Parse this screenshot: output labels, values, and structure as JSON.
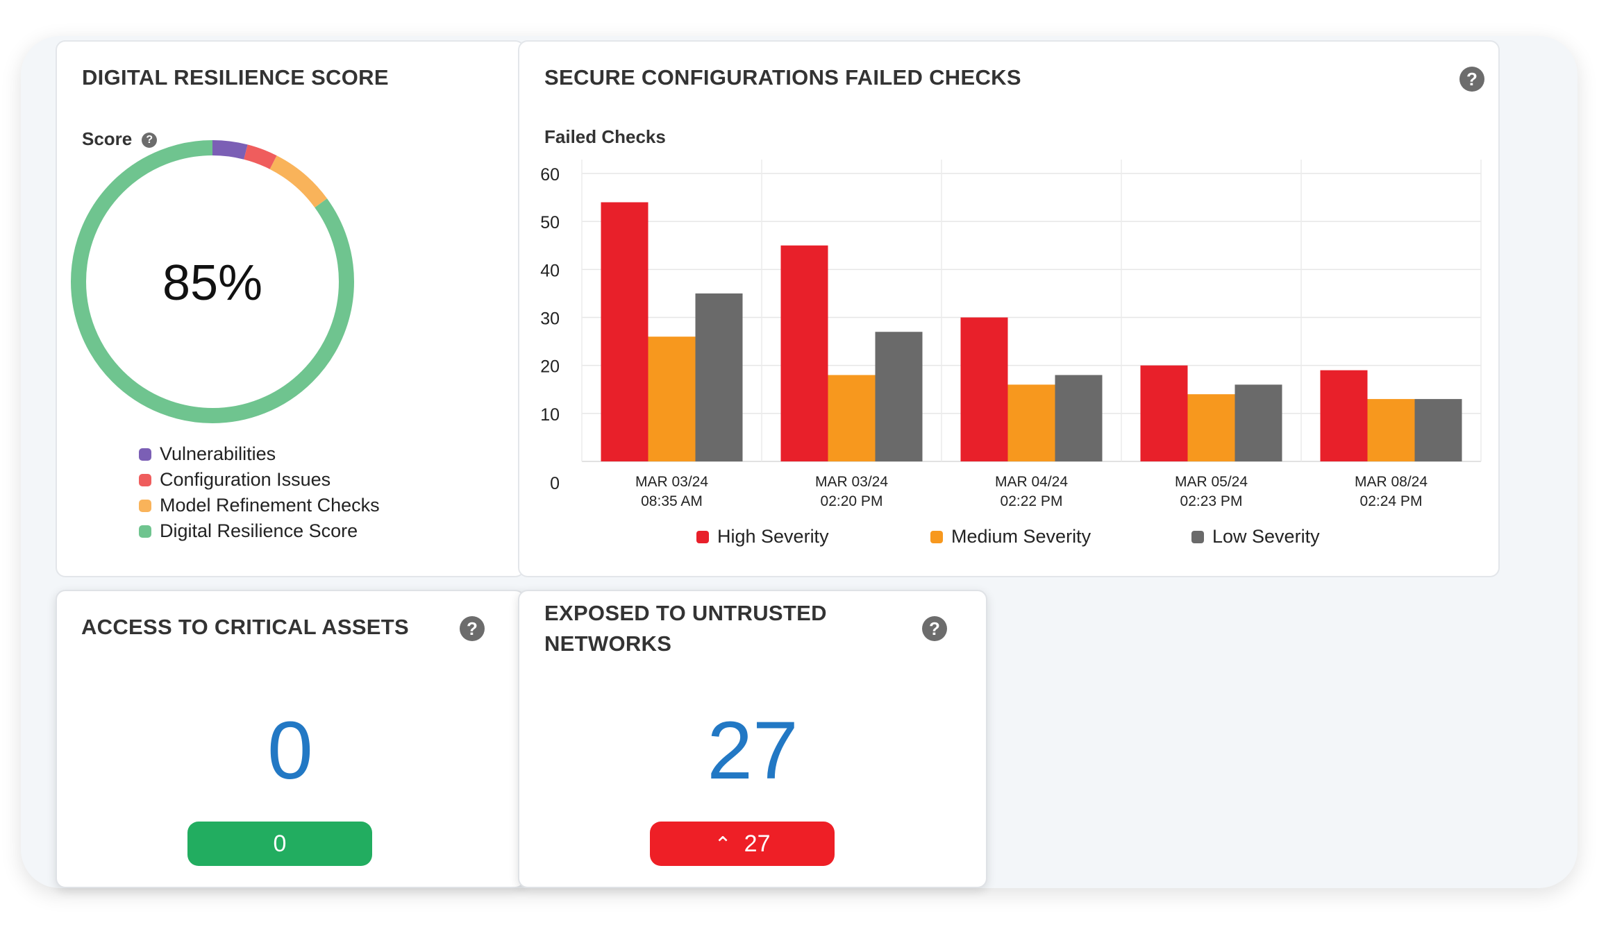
{
  "resilience": {
    "title": "DIGITAL RESILIENCE SCORE",
    "score_label": "Score",
    "help": "?",
    "score_text": "85%",
    "score_value": 85,
    "segments": [
      {
        "name": "Vulnerabilities",
        "fraction": 0.04,
        "color": "#7b5fb5"
      },
      {
        "name": "Configuration Issues",
        "fraction": 0.035,
        "color": "#ef5d5d"
      },
      {
        "name": "Model Refinement Checks",
        "fraction": 0.075,
        "color": "#f9b35a"
      },
      {
        "name": "Digital Resilience Score",
        "fraction": 0.85,
        "color": "#6fc48f"
      }
    ]
  },
  "failed_checks": {
    "title": "SECURE CONFIGURATIONS FAILED CHECKS",
    "help": "?",
    "subtitle": "Failed Checks"
  },
  "chart_data": {
    "type": "bar",
    "categories": [
      "MAR 03/24 08:35 AM",
      "MAR 03/24 02:20 PM",
      "MAR 04/24 02:22 PM",
      "MAR 05/24 02:23 PM",
      "MAR 08/24 02:24 PM"
    ],
    "category_lines": [
      [
        "MAR 03/24",
        "08:35 AM"
      ],
      [
        "MAR 03/24",
        "02:20 PM"
      ],
      [
        "MAR 04/24",
        "02:22 PM"
      ],
      [
        "MAR 05/24",
        "02:23 PM"
      ],
      [
        "MAR 08/24",
        "02:24 PM"
      ]
    ],
    "series": [
      {
        "name": "High Severity",
        "color": "#e8202a",
        "values": [
          54,
          45,
          30,
          20,
          19
        ]
      },
      {
        "name": "Medium Severity",
        "color": "#f7981e",
        "values": [
          26,
          18,
          16,
          14,
          13
        ]
      },
      {
        "name": "Low Severity",
        "color": "#6a6a6a",
        "values": [
          35,
          27,
          18,
          16,
          13
        ]
      }
    ],
    "yticks": [
      0,
      10,
      20,
      30,
      40,
      50,
      60
    ],
    "ylim": [
      0,
      60
    ],
    "grid": true,
    "legend_position": "bottom"
  },
  "access": {
    "title": "ACCESS TO CRITICAL ASSETS",
    "help": "?",
    "value": "0",
    "change": "0",
    "change_color": "#22ad60"
  },
  "exposed": {
    "title_line1": "EXPOSED TO UNTRUSTED",
    "title_line2": "NETWORKS",
    "help": "?",
    "value": "27",
    "change": "27",
    "change_icon": "caret-up-icon",
    "change_color": "#ee1f26"
  }
}
